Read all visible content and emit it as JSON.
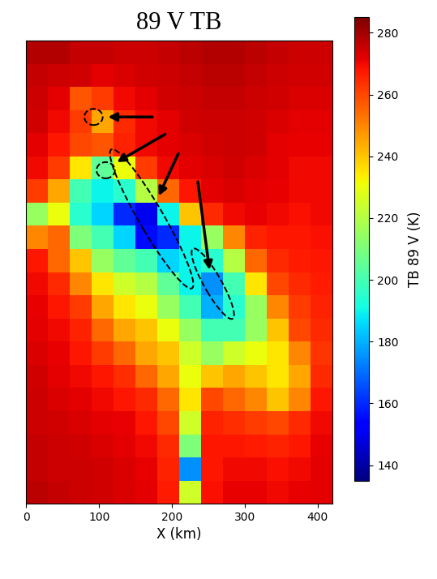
{
  "chart_data": {
    "type": "heatmap",
    "title": "89 V TB",
    "x_label": "X (km)",
    "colorbar_label": "TB 89 V (K)",
    "x_edges": [
      0,
      30,
      60,
      90,
      120,
      150,
      180,
      210,
      240,
      270,
      300,
      330,
      360,
      390,
      420
    ],
    "y_edges": [
      600,
      570,
      540,
      510,
      480,
      450,
      420,
      390,
      360,
      330,
      300,
      270,
      240,
      210,
      180,
      150,
      120,
      90,
      60,
      30,
      0
    ],
    "cells": [
      [
        278,
        278,
        276,
        276,
        275,
        275,
        276,
        277,
        278,
        278,
        277,
        276,
        275,
        275
      ],
      [
        276,
        275,
        274,
        272,
        273,
        274,
        275,
        276,
        277,
        277,
        276,
        275,
        274,
        274
      ],
      [
        275,
        272,
        258,
        262,
        270,
        272,
        274,
        275,
        276,
        276,
        275,
        274,
        273,
        273
      ],
      [
        274,
        270,
        262,
        245,
        265,
        270,
        272,
        274,
        275,
        275,
        274,
        273,
        272,
        272
      ],
      [
        272,
        268,
        260,
        258,
        266,
        270,
        272,
        273,
        274,
        275,
        274,
        272,
        271,
        271
      ],
      [
        270,
        262,
        235,
        205,
        230,
        262,
        270,
        272,
        273,
        274,
        273,
        272,
        270,
        270
      ],
      [
        262,
        245,
        200,
        190,
        195,
        220,
        255,
        268,
        272,
        273,
        272,
        271,
        270,
        270
      ],
      [
        215,
        230,
        195,
        185,
        160,
        150,
        190,
        240,
        265,
        270,
        271,
        270,
        269,
        270
      ],
      [
        250,
        255,
        210,
        200,
        185,
        155,
        160,
        190,
        215,
        250,
        266,
        268,
        268,
        269
      ],
      [
        268,
        255,
        240,
        215,
        205,
        200,
        185,
        190,
        195,
        220,
        255,
        265,
        267,
        268
      ],
      [
        270,
        265,
        250,
        235,
        225,
        220,
        205,
        190,
        175,
        200,
        235,
        260,
        265,
        267
      ],
      [
        271,
        268,
        262,
        245,
        235,
        230,
        215,
        200,
        180,
        195,
        215,
        250,
        262,
        266
      ],
      [
        272,
        270,
        266,
        255,
        245,
        240,
        230,
        215,
        200,
        200,
        215,
        240,
        260,
        265
      ],
      [
        273,
        271,
        268,
        262,
        255,
        245,
        240,
        225,
        215,
        225,
        230,
        235,
        250,
        263
      ],
      [
        274,
        272,
        270,
        268,
        264,
        255,
        245,
        230,
        240,
        245,
        240,
        235,
        245,
        265
      ],
      [
        275,
        273,
        272,
        270,
        268,
        265,
        255,
        235,
        260,
        255,
        250,
        240,
        250,
        268
      ],
      [
        275,
        274,
        273,
        272,
        271,
        268,
        260,
        225,
        266,
        264,
        262,
        260,
        265,
        270
      ],
      [
        276,
        275,
        274,
        273,
        272,
        270,
        265,
        210,
        268,
        268,
        267,
        266,
        268,
        271
      ],
      [
        276,
        275,
        275,
        274,
        273,
        271,
        266,
        175,
        268,
        270,
        270,
        269,
        270,
        272
      ],
      [
        277,
        276,
        275,
        274,
        273,
        272,
        267,
        225,
        269,
        271,
        271,
        270,
        271,
        272
      ]
    ],
    "xlim": [
      0,
      420
    ],
    "ylim": [
      0,
      600
    ],
    "xticks": [
      0,
      100,
      200,
      300,
      400
    ],
    "colorbar_range": [
      135,
      285
    ],
    "colorbar_ticks": [
      140,
      160,
      180,
      200,
      220,
      240,
      260,
      280
    ],
    "tick_labels": "x"
  }
}
